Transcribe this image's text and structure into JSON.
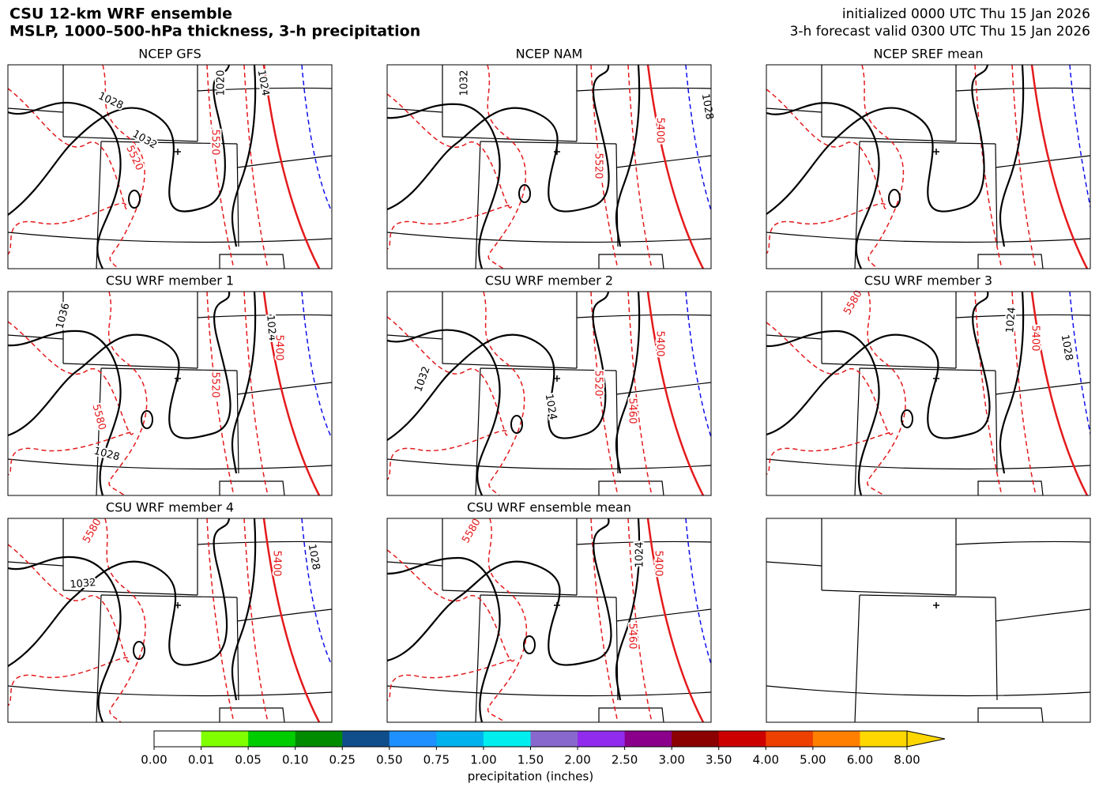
{
  "header": {
    "title_lines": [
      "CSU 12-km WRF ensemble",
      "MSLP, 1000–500-hPa thickness, 3-h precipitation"
    ],
    "info_lines": [
      "initialized 0000 UTC Thu 15 Jan 2026",
      "3-h forecast valid 0300 UTC Thu 15 Jan 2026"
    ]
  },
  "panels": [
    {
      "title": "NCEP GFS",
      "contour_labels": [
        "1028",
        "1032",
        "1020",
        "1024",
        "5520",
        "5520"
      ]
    },
    {
      "title": "NCEP NAM",
      "contour_labels": [
        "1032",
        "1028",
        "5400",
        "5520"
      ]
    },
    {
      "title": "NCEP SREF mean"
    },
    {
      "title": "CSU WRF member 1",
      "contour_labels": [
        "1036",
        "1024",
        "5400",
        "5520",
        "5580",
        "1028"
      ]
    },
    {
      "title": "CSU WRF member 2",
      "contour_labels": [
        "1032",
        "1024",
        "5400",
        "5520",
        "5460"
      ]
    },
    {
      "title": "CSU WRF member 3",
      "contour_labels": [
        "1024",
        "5400",
        "1028",
        "5580"
      ]
    },
    {
      "title": "CSU WRF member 4",
      "contour_labels": [
        "1032",
        "5400",
        "1028",
        "5580"
      ]
    },
    {
      "title": "CSU WRF ensemble mean",
      "contour_labels": [
        "1024",
        "5400",
        "5460",
        "5580"
      ]
    },
    {
      "basemap_only": true
    }
  ],
  "colorbar": {
    "label": "precipitation (inches)",
    "ticks": [
      "0.00",
      "0.01",
      "0.05",
      "0.10",
      "0.25",
      "0.50",
      "0.75",
      "1.00",
      "1.50",
      "2.00",
      "2.50",
      "3.00",
      "3.50",
      "4.00",
      "5.00",
      "6.00",
      "8.00"
    ],
    "colors": [
      "#ffffff",
      "#7fff00",
      "#00cd00",
      "#008b00",
      "#104e8b",
      "#1e90ff",
      "#00b2ee",
      "#00eeee",
      "#8968cd",
      "#912cee",
      "#8b008b",
      "#8b0000",
      "#cd0000",
      "#ee4000",
      "#ff7f00",
      "#ffd700"
    ]
  }
}
